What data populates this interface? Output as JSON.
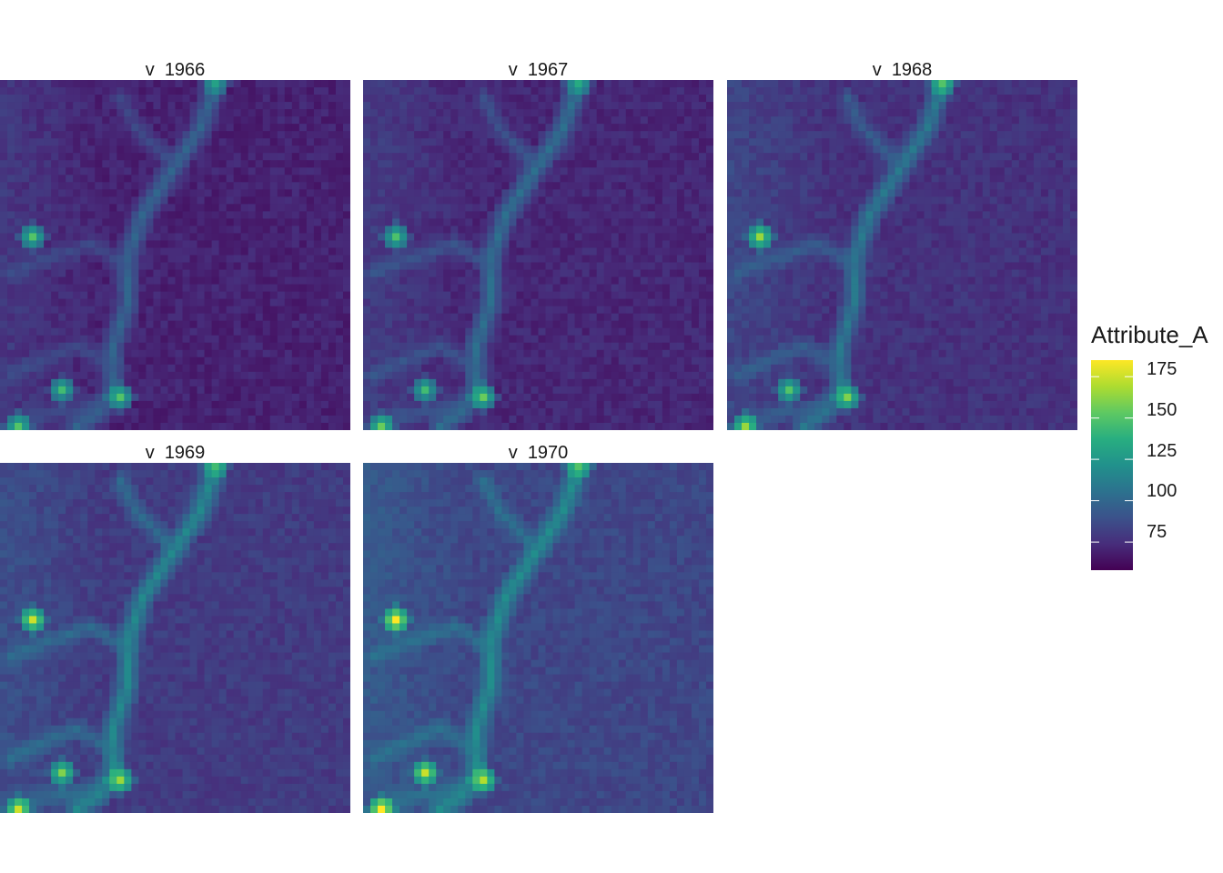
{
  "chart_data": {
    "type": "heatmap",
    "facet_label_prefix": "v",
    "facets": [
      "1966",
      "1967",
      "1968",
      "1969",
      "1970"
    ],
    "colorbar": {
      "title": "Attribute_A",
      "palette": "viridis",
      "range": [
        58,
        185
      ],
      "ticks": [
        175,
        150,
        125,
        100,
        75
      ],
      "tick_labels": [
        "175",
        "150",
        "125",
        "100",
        "75"
      ]
    },
    "grid": false,
    "legend_position": "right",
    "grid_cells": [
      48,
      48
    ],
    "hotspots": [
      {
        "row": 21,
        "col": 4,
        "values": [
          150,
          148,
          165,
          175,
          185
        ]
      },
      {
        "row": 42,
        "col": 8,
        "values": [
          145,
          145,
          150,
          160,
          175
        ]
      },
      {
        "row": 43,
        "col": 16,
        "values": [
          150,
          155,
          160,
          165,
          170
        ]
      },
      {
        "row": 47,
        "col": 2,
        "values": [
          150,
          155,
          165,
          175,
          185
        ]
      },
      {
        "row": 0,
        "col": 29,
        "values": [
          130,
          135,
          150,
          145,
          150
        ]
      }
    ],
    "background_values": [
      70,
      72,
      76,
      80,
      85
    ],
    "river_values": [
      100,
      105,
      110,
      118,
      120
    ]
  }
}
